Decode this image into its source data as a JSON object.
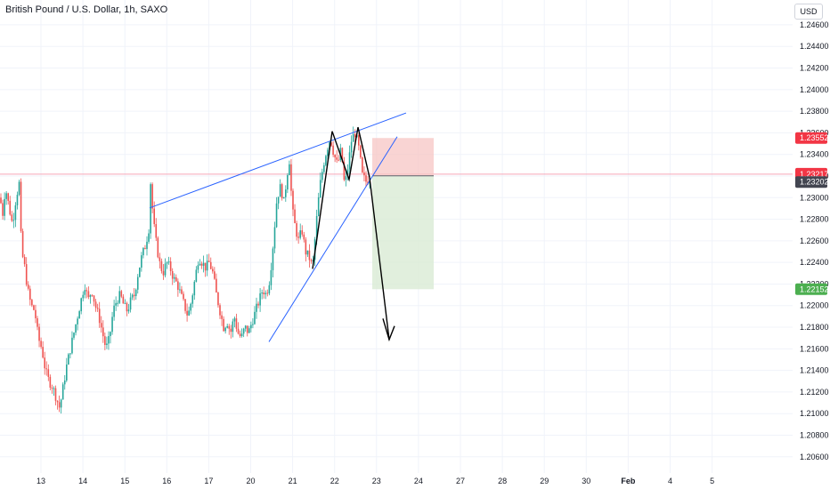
{
  "header": {
    "symbol": "British Pound / U.S. Dollar, 1h, SAXO"
  },
  "axis": {
    "currency": "USD"
  },
  "colors": {
    "up": "#26a69a",
    "down": "#ef5350",
    "drawing": "#2962ff",
    "arrow": "#000000",
    "stop_fill": "#f7c5c4",
    "target_fill": "#d9ebd5",
    "price_line": "#f7a8b8",
    "stop_label": "#f23645",
    "target_label": "#4caf50",
    "price_label": "#f23645",
    "entry_label": "#434651"
  },
  "chart_data": {
    "type": "candlestick",
    "ylim": [
      1.2045,
      1.2483
    ],
    "y_ticks": [
      "1.24600",
      "1.24400",
      "1.24200",
      "1.24000",
      "1.23800",
      "1.23600",
      "1.23400",
      "1.23200",
      "1.23000",
      "1.22800",
      "1.22600",
      "1.22400",
      "1.22200",
      "1.22000",
      "1.21800",
      "1.21600",
      "1.21400",
      "1.21200",
      "1.21000",
      "1.20800",
      "1.20600"
    ],
    "x_ticks": [
      {
        "label": "13",
        "month": false
      },
      {
        "label": "14",
        "month": false
      },
      {
        "label": "15",
        "month": false
      },
      {
        "label": "16",
        "month": false
      },
      {
        "label": "17",
        "month": false
      },
      {
        "label": "20",
        "month": false
      },
      {
        "label": "21",
        "month": false
      },
      {
        "label": "22",
        "month": false
      },
      {
        "label": "23",
        "month": false
      },
      {
        "label": "24",
        "month": false
      },
      {
        "label": "27",
        "month": false
      },
      {
        "label": "28",
        "month": false
      },
      {
        "label": "29",
        "month": false
      },
      {
        "label": "30",
        "month": false
      },
      {
        "label": "Feb",
        "month": true
      },
      {
        "label": "4",
        "month": false
      },
      {
        "label": "5",
        "month": false
      }
    ],
    "price_path": [
      [
        0,
        1.23
      ],
      [
        3,
        1.2285
      ],
      [
        6,
        1.231
      ],
      [
        10,
        1.2292
      ],
      [
        14,
        1.2275
      ],
      [
        18,
        1.23
      ],
      [
        22,
        1.2315
      ],
      [
        24,
        1.225
      ],
      [
        27,
        1.224
      ],
      [
        31,
        1.2215
      ],
      [
        35,
        1.22
      ],
      [
        39,
        1.2195
      ],
      [
        43,
        1.217
      ],
      [
        47,
        1.216
      ],
      [
        51,
        1.214
      ],
      [
        55,
        1.213
      ],
      [
        59,
        1.2125
      ],
      [
        63,
        1.2115
      ],
      [
        67,
        1.2105
      ],
      [
        71,
        1.2125
      ],
      [
        75,
        1.2145
      ],
      [
        79,
        1.216
      ],
      [
        83,
        1.2175
      ],
      [
        87,
        1.219
      ],
      [
        91,
        1.2205
      ],
      [
        95,
        1.222
      ],
      [
        99,
        1.2205
      ],
      [
        103,
        1.2215
      ],
      [
        107,
        1.22
      ],
      [
        111,
        1.219
      ],
      [
        115,
        1.2175
      ],
      [
        119,
        1.216
      ],
      [
        123,
        1.217
      ],
      [
        127,
        1.2195
      ],
      [
        131,
        1.2205
      ],
      [
        135,
        1.221
      ],
      [
        139,
        1.22
      ],
      [
        143,
        1.2195
      ],
      [
        147,
        1.2205
      ],
      [
        151,
        1.221
      ],
      [
        155,
        1.223
      ],
      [
        159,
        1.2245
      ],
      [
        163,
        1.2255
      ],
      [
        167,
        1.227
      ],
      [
        169,
        1.2315
      ],
      [
        172,
        1.228
      ],
      [
        175,
        1.226
      ],
      [
        179,
        1.224
      ],
      [
        183,
        1.223
      ],
      [
        187,
        1.224
      ],
      [
        191,
        1.2235
      ],
      [
        195,
        1.2225
      ],
      [
        199,
        1.222
      ],
      [
        203,
        1.221
      ],
      [
        207,
        1.22
      ],
      [
        211,
        1.219
      ],
      [
        215,
        1.2205
      ],
      [
        219,
        1.2225
      ],
      [
        223,
        1.2245
      ],
      [
        227,
        1.224
      ],
      [
        231,
        1.2235
      ],
      [
        235,
        1.224
      ],
      [
        239,
        1.223
      ],
      [
        243,
        1.221
      ],
      [
        247,
        1.2195
      ],
      [
        251,
        1.218
      ],
      [
        255,
        1.2185
      ],
      [
        259,
        1.2175
      ],
      [
        263,
        1.219
      ],
      [
        267,
        1.2175
      ],
      [
        271,
        1.217
      ],
      [
        275,
        1.218
      ],
      [
        279,
        1.2175
      ],
      [
        283,
        1.2185
      ],
      [
        287,
        1.2195
      ],
      [
        291,
        1.2205
      ],
      [
        295,
        1.2215
      ],
      [
        299,
        1.221
      ],
      [
        303,
        1.2225
      ],
      [
        307,
        1.226
      ],
      [
        311,
        1.23
      ],
      [
        315,
        1.231
      ],
      [
        319,
        1.2295
      ],
      [
        322,
        1.232
      ],
      [
        325,
        1.2335
      ],
      [
        328,
        1.229
      ],
      [
        331,
        1.2275
      ],
      [
        335,
        1.226
      ],
      [
        339,
        1.227
      ],
      [
        343,
        1.225
      ],
      [
        347,
        1.2245
      ],
      [
        351,
        1.2235
      ],
      [
        355,
        1.2275
      ],
      [
        359,
        1.231
      ],
      [
        363,
        1.233
      ],
      [
        367,
        1.2345
      ],
      [
        371,
        1.2355
      ],
      [
        375,
        1.234
      ],
      [
        379,
        1.233
      ],
      [
        383,
        1.2345
      ],
      [
        387,
        1.231
      ],
      [
        391,
        1.233
      ],
      [
        395,
        1.2355
      ],
      [
        399,
        1.236
      ],
      [
        403,
        1.2345
      ],
      [
        407,
        1.232
      ],
      [
        411,
        1.2315
      ],
      [
        415,
        1.2318
      ],
      [
        418,
        1.2321
      ]
    ],
    "drawings": {
      "upper_line": [
        [
          168,
          1.22905
        ],
        [
          456,
          1.23784
        ]
      ],
      "lower_line": [
        [
          302,
          1.21665
        ],
        [
          446,
          1.23564
        ]
      ],
      "pattern": [
        [
          351,
          1.2234
        ],
        [
          373,
          1.23614
        ],
        [
          392,
          1.23168
        ],
        [
          402,
          1.23652
        ],
        [
          415,
          1.23186
        ]
      ],
      "projection": [
        [
          415,
          1.23186
        ],
        [
          437,
          1.21685
        ]
      ],
      "arrowhead": [
        [
          430,
          1.2188
        ],
        [
          437,
          1.21685
        ],
        [
          443,
          1.21811
        ]
      ],
      "position": {
        "x_start": 418,
        "x_end": 487,
        "entry": 1.23202,
        "stop": 1.23552,
        "target": 1.22152
      }
    },
    "current_price": 1.23217,
    "labels": {
      "stop": "1.23552",
      "price": "1.23217",
      "countdown": "08:15",
      "entry": "1.23202",
      "target": "1.22152"
    }
  }
}
